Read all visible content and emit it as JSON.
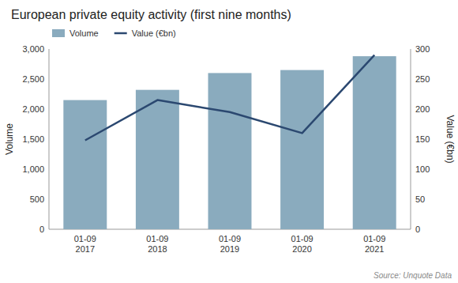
{
  "chart_data": {
    "type": "bar",
    "title": "European private equity activity (first nine months)",
    "categories": [
      "01-09\n2017",
      "01-09\n2018",
      "01-09\n2019",
      "01-09\n2020",
      "01-09\n2021"
    ],
    "series": [
      {
        "name": "Volume",
        "color": "#8aabbe",
        "type": "bar",
        "values": [
          2150,
          2320,
          2600,
          2650,
          2880
        ]
      },
      {
        "name": "Value (€bn)",
        "color": "#2b4870",
        "type": "line",
        "axis": "y2",
        "values": [
          148,
          215,
          195,
          160,
          290
        ]
      }
    ],
    "ylabel": "Volume",
    "y2label": "Value (€bn)",
    "ylim": [
      0,
      3000
    ],
    "yticks": [
      0,
      500,
      {
        "value": 1000,
        "label": "1,000"
      },
      {
        "value": 1500,
        "label": "1,500"
      },
      {
        "value": 2000,
        "label": "2,000"
      },
      {
        "value": 2500,
        "label": "2,500"
      },
      {
        "value": 3000,
        "label": "3,000"
      }
    ],
    "y2lim": [
      0,
      300
    ],
    "y2ticks": [
      0,
      50,
      100,
      150,
      200,
      250,
      300
    ],
    "source": "Source: Unquote Data",
    "legend": "top-left",
    "grid": false
  }
}
